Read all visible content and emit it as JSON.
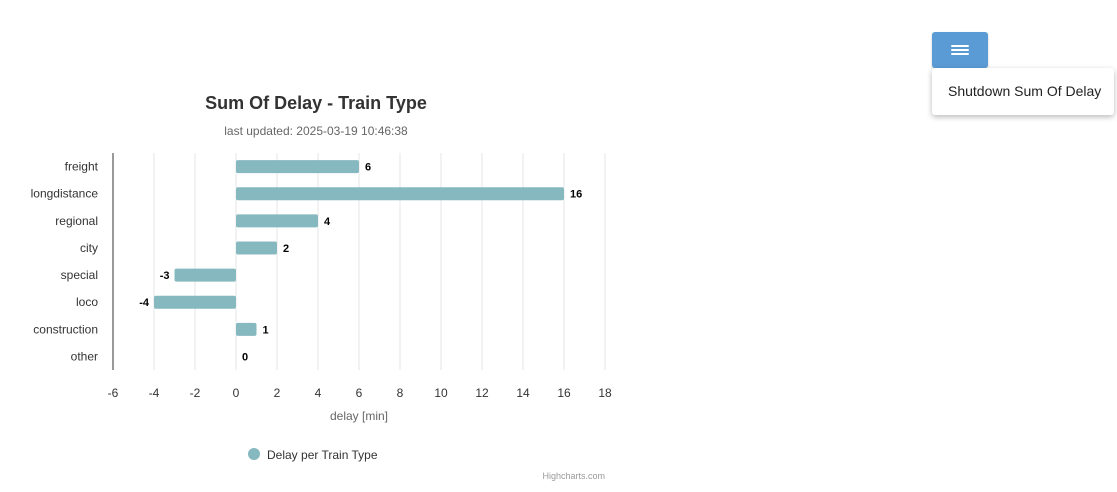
{
  "colors": {
    "series": "#85b8bf",
    "grid": "#e6e6e6",
    "axis_line": "#333333",
    "menu_button": "#5b9bd5"
  },
  "menu": {
    "icon": "hamburger-icon",
    "items": [
      {
        "label": "Shutdown Sum Of Delay"
      }
    ]
  },
  "chart_data": {
    "type": "bar",
    "orientation": "horizontal",
    "title": "Sum Of Delay - Train Type",
    "subtitle": "last updated: 2025-03-19 10:46:38",
    "xlabel": "delay [min]",
    "ylabel": "",
    "categories": [
      "freight",
      "longdistance",
      "regional",
      "city",
      "special",
      "loco",
      "construction",
      "other"
    ],
    "series": [
      {
        "name": "Delay per Train Type",
        "values": [
          6,
          16,
          4,
          2,
          -3,
          -4,
          1,
          0
        ]
      }
    ],
    "xlim": [
      -6,
      18
    ],
    "ticks": [
      "-6",
      "-4",
      "-2",
      "0",
      "2",
      "4",
      "6",
      "8",
      "10",
      "12",
      "14",
      "16",
      "18"
    ],
    "grid": true,
    "legend_position": "bottom",
    "credits": "Highcharts.com"
  }
}
